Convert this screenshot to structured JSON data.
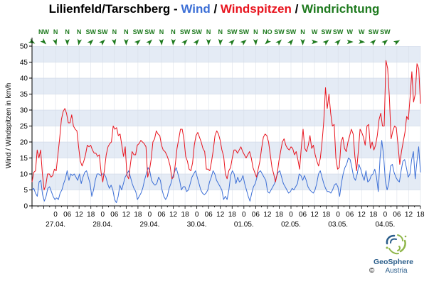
{
  "title": {
    "station": "Lilienfeld/Tarschberg",
    "sep1": " - ",
    "wind": "Wind",
    "sep2": " / ",
    "gusts": "Windspitzen",
    "sep3": " / ",
    "direction": "Windrichtung"
  },
  "colors": {
    "wind": "#3c6fd6",
    "gusts": "#e8141e",
    "direction": "#1e7a1e",
    "band": "#e4ebf5",
    "grid": "#c8d2e1"
  },
  "chart_data": {
    "type": "line",
    "ylabel": "Wind / Windspitzen in km/h",
    "ylim": [
      0,
      50
    ],
    "yticks": [
      0,
      5,
      10,
      15,
      20,
      25,
      30,
      35,
      40,
      45,
      50
    ],
    "x_unit": "hours",
    "xlim": [
      0,
      198
    ],
    "hour_ticks": [
      {
        "x": 12,
        "label": "0"
      },
      {
        "x": 18,
        "label": "06"
      },
      {
        "x": 24,
        "label": "12"
      },
      {
        "x": 30,
        "label": "18"
      },
      {
        "x": 36,
        "label": "0"
      },
      {
        "x": 42,
        "label": "06"
      },
      {
        "x": 48,
        "label": "12"
      },
      {
        "x": 54,
        "label": "18"
      },
      {
        "x": 60,
        "label": "0"
      },
      {
        "x": 66,
        "label": "06"
      },
      {
        "x": 72,
        "label": "12"
      },
      {
        "x": 78,
        "label": "18"
      },
      {
        "x": 84,
        "label": "0"
      },
      {
        "x": 90,
        "label": "06"
      },
      {
        "x": 96,
        "label": "12"
      },
      {
        "x": 102,
        "label": "18"
      },
      {
        "x": 108,
        "label": "0"
      },
      {
        "x": 114,
        "label": "06"
      },
      {
        "x": 120,
        "label": "12"
      },
      {
        "x": 126,
        "label": "18"
      },
      {
        "x": 132,
        "label": "0"
      },
      {
        "x": 138,
        "label": "06"
      },
      {
        "x": 144,
        "label": "12"
      },
      {
        "x": 150,
        "label": "18"
      },
      {
        "x": 156,
        "label": "0"
      },
      {
        "x": 162,
        "label": "06"
      },
      {
        "x": 168,
        "label": "12"
      },
      {
        "x": 174,
        "label": "18"
      },
      {
        "x": 180,
        "label": "0"
      },
      {
        "x": 186,
        "label": "06"
      },
      {
        "x": 192,
        "label": "12"
      },
      {
        "x": 198,
        "label": "18"
      }
    ],
    "date_labels": [
      {
        "x": 12,
        "label": "27.04."
      },
      {
        "x": 36,
        "label": "28.04."
      },
      {
        "x": 60,
        "label": "29.04."
      },
      {
        "x": 84,
        "label": "30.04."
      },
      {
        "x": 108,
        "label": "01.05."
      },
      {
        "x": 132,
        "label": "02.05."
      },
      {
        "x": 156,
        "label": "03.05."
      },
      {
        "x": 180,
        "label": "04.05."
      }
    ],
    "directions": [
      {
        "x": 0,
        "label": "",
        "deg": 300
      },
      {
        "x": 6,
        "label": "NW",
        "deg": 315
      },
      {
        "x": 12,
        "label": "N",
        "deg": 345
      },
      {
        "x": 18,
        "label": "N",
        "deg": 0
      },
      {
        "x": 24,
        "label": "N",
        "deg": 10
      },
      {
        "x": 30,
        "label": "SW",
        "deg": 225
      },
      {
        "x": 36,
        "label": "SW",
        "deg": 225
      },
      {
        "x": 42,
        "label": "N",
        "deg": 350
      },
      {
        "x": 48,
        "label": "N",
        "deg": 0
      },
      {
        "x": 54,
        "label": "SW",
        "deg": 230
      },
      {
        "x": 60,
        "label": "SW",
        "deg": 225
      },
      {
        "x": 66,
        "label": "N",
        "deg": 355
      },
      {
        "x": 72,
        "label": "N",
        "deg": 5
      },
      {
        "x": 78,
        "label": "SW",
        "deg": 225
      },
      {
        "x": 84,
        "label": "SW",
        "deg": 220
      },
      {
        "x": 90,
        "label": "N",
        "deg": 0
      },
      {
        "x": 96,
        "label": "N",
        "deg": 5
      },
      {
        "x": 102,
        "label": "SW",
        "deg": 225
      },
      {
        "x": 108,
        "label": "SW",
        "deg": 230
      },
      {
        "x": 114,
        "label": "N",
        "deg": 355
      },
      {
        "x": 120,
        "label": "NO",
        "deg": 45
      },
      {
        "x": 126,
        "label": "SW",
        "deg": 225
      },
      {
        "x": 132,
        "label": "SW",
        "deg": 220
      },
      {
        "x": 138,
        "label": "N",
        "deg": 0
      },
      {
        "x": 144,
        "label": "W",
        "deg": 270
      },
      {
        "x": 150,
        "label": "SW",
        "deg": 230
      },
      {
        "x": 156,
        "label": "SW",
        "deg": 225
      },
      {
        "x": 162,
        "label": "W",
        "deg": 270
      },
      {
        "x": 168,
        "label": "W",
        "deg": 275
      },
      {
        "x": 174,
        "label": "SW",
        "deg": 225
      },
      {
        "x": 180,
        "label": "SW",
        "deg": 230
      },
      {
        "x": 186,
        "label": "",
        "deg": 240
      }
    ],
    "series": [
      {
        "name": "Wind",
        "values": [
          5,
          5.5,
          4,
          3,
          7.5,
          8,
          3.5,
          1.5,
          3,
          5.5,
          6,
          4.5,
          3,
          2,
          2.5,
          2,
          4,
          5,
          7,
          8.5,
          11,
          8,
          10,
          9.5,
          10,
          9,
          8,
          10,
          7,
          9,
          10.5,
          11,
          9,
          7,
          3,
          5,
          8,
          10,
          10,
          9.5,
          10,
          10,
          9,
          7,
          5.5,
          6.5,
          5,
          2,
          1,
          3,
          6.5,
          5,
          7,
          9,
          10,
          11,
          9,
          7,
          5.5,
          4.5,
          2,
          3,
          4,
          5.5,
          8,
          10,
          12,
          11,
          8,
          7,
          6.5,
          7,
          9,
          8,
          5,
          3,
          2,
          3,
          5.5,
          7,
          9,
          10.5,
          12,
          10,
          8,
          5,
          6,
          6,
          4.5,
          5,
          7,
          9,
          10,
          11,
          9,
          7,
          5,
          4,
          3.5,
          4,
          5,
          7.5,
          9,
          11,
          10,
          8,
          7,
          6,
          5,
          2,
          3,
          2,
          5,
          9.5,
          11,
          10,
          7,
          9,
          7.5,
          8,
          9.5,
          7,
          5,
          3,
          1.5,
          4,
          6,
          7,
          9,
          10.5,
          11,
          10,
          9,
          8,
          4.5,
          4,
          5,
          6,
          7,
          9,
          10.5,
          11,
          9,
          7,
          6,
          5,
          4,
          4.5,
          5.5,
          5,
          6,
          7,
          10,
          9.5,
          8,
          9.5,
          8,
          6,
          5,
          4.5,
          4,
          5,
          7,
          10,
          11,
          9,
          7,
          5.5,
          4.5,
          4.5,
          4,
          5,
          6.5,
          7,
          6,
          3,
          7,
          10,
          12,
          13,
          15,
          14.5,
          12,
          9,
          8,
          10,
          13,
          11.5,
          9.5,
          8,
          11,
          7.5,
          8,
          9.5,
          10,
          11.5,
          9,
          4.5,
          15,
          20.5,
          16,
          8,
          5,
          7,
          12.5,
          13,
          10.5,
          9,
          8,
          7.5,
          11,
          14,
          14.5,
          12,
          9,
          10,
          14.5,
          17,
          8.5,
          14,
          18.5,
          10.5
        ]
      },
      {
        "name": "Windspitzen",
        "values": [
          7.5,
          10.5,
          11,
          17.5,
          15,
          17.5,
          10,
          5,
          6.5,
          10,
          10,
          9,
          9.5,
          11.5,
          11,
          16,
          21,
          27,
          29.5,
          30.5,
          29,
          26,
          26,
          28.5,
          25,
          24,
          23.5,
          18.5,
          14,
          12.5,
          14,
          16,
          19,
          18.5,
          19,
          17.5,
          16.5,
          16.5,
          15.5,
          16,
          10.5,
          7.5,
          11.5,
          16,
          18.5,
          19.5,
          20,
          25,
          24,
          24.5,
          22,
          22.5,
          19,
          15.5,
          18.5,
          9.5,
          8.5,
          13,
          17,
          16,
          16,
          19,
          19.5,
          20.5,
          20,
          19.5,
          18.5,
          9,
          11,
          14.5,
          20,
          21,
          23.5,
          22.5,
          22,
          19,
          17.5,
          17,
          16,
          14.5,
          12.5,
          8.5,
          9,
          13,
          18,
          21,
          24,
          24,
          21,
          15.5,
          14,
          11.5,
          11,
          13.5,
          19,
          22,
          23,
          21.5,
          20,
          18,
          17,
          11.5,
          11.5,
          11,
          14,
          17.5,
          22,
          23.5,
          22.5,
          20.5,
          17.5,
          15.5,
          10,
          8.5,
          11,
          12,
          15,
          17.5,
          17.5,
          16.5,
          17.5,
          18.5,
          17,
          16,
          15,
          16,
          17,
          15,
          12,
          10.5,
          9,
          11.5,
          14,
          18,
          21.5,
          22.5,
          22,
          20,
          16,
          12,
          10,
          7.5,
          10,
          14,
          17,
          20,
          21,
          19,
          18,
          17.5,
          18.5,
          18,
          16,
          17,
          14.5,
          11.5,
          18.5,
          24,
          18,
          17,
          19,
          22,
          18,
          19,
          16,
          14,
          12.5,
          15,
          20,
          26.5,
          37,
          30.5,
          35,
          29,
          25,
          25.5,
          15,
          11.5,
          12,
          20,
          21.5,
          18,
          17,
          20,
          22,
          24,
          22.5,
          15.5,
          11,
          17,
          24,
          23,
          21.5,
          19,
          25,
          25.5,
          18,
          20,
          17.5,
          19,
          22,
          27,
          29,
          25,
          25,
          45.5,
          43,
          34,
          21,
          23.5,
          25,
          24.5,
          19,
          13,
          17,
          20,
          23,
          28,
          27,
          34,
          42,
          32.5,
          35,
          44.5,
          43,
          32
        ]
      }
    ]
  },
  "logo": {
    "name": "GeoSphere",
    "country": "Austria",
    "copyright": "©"
  }
}
